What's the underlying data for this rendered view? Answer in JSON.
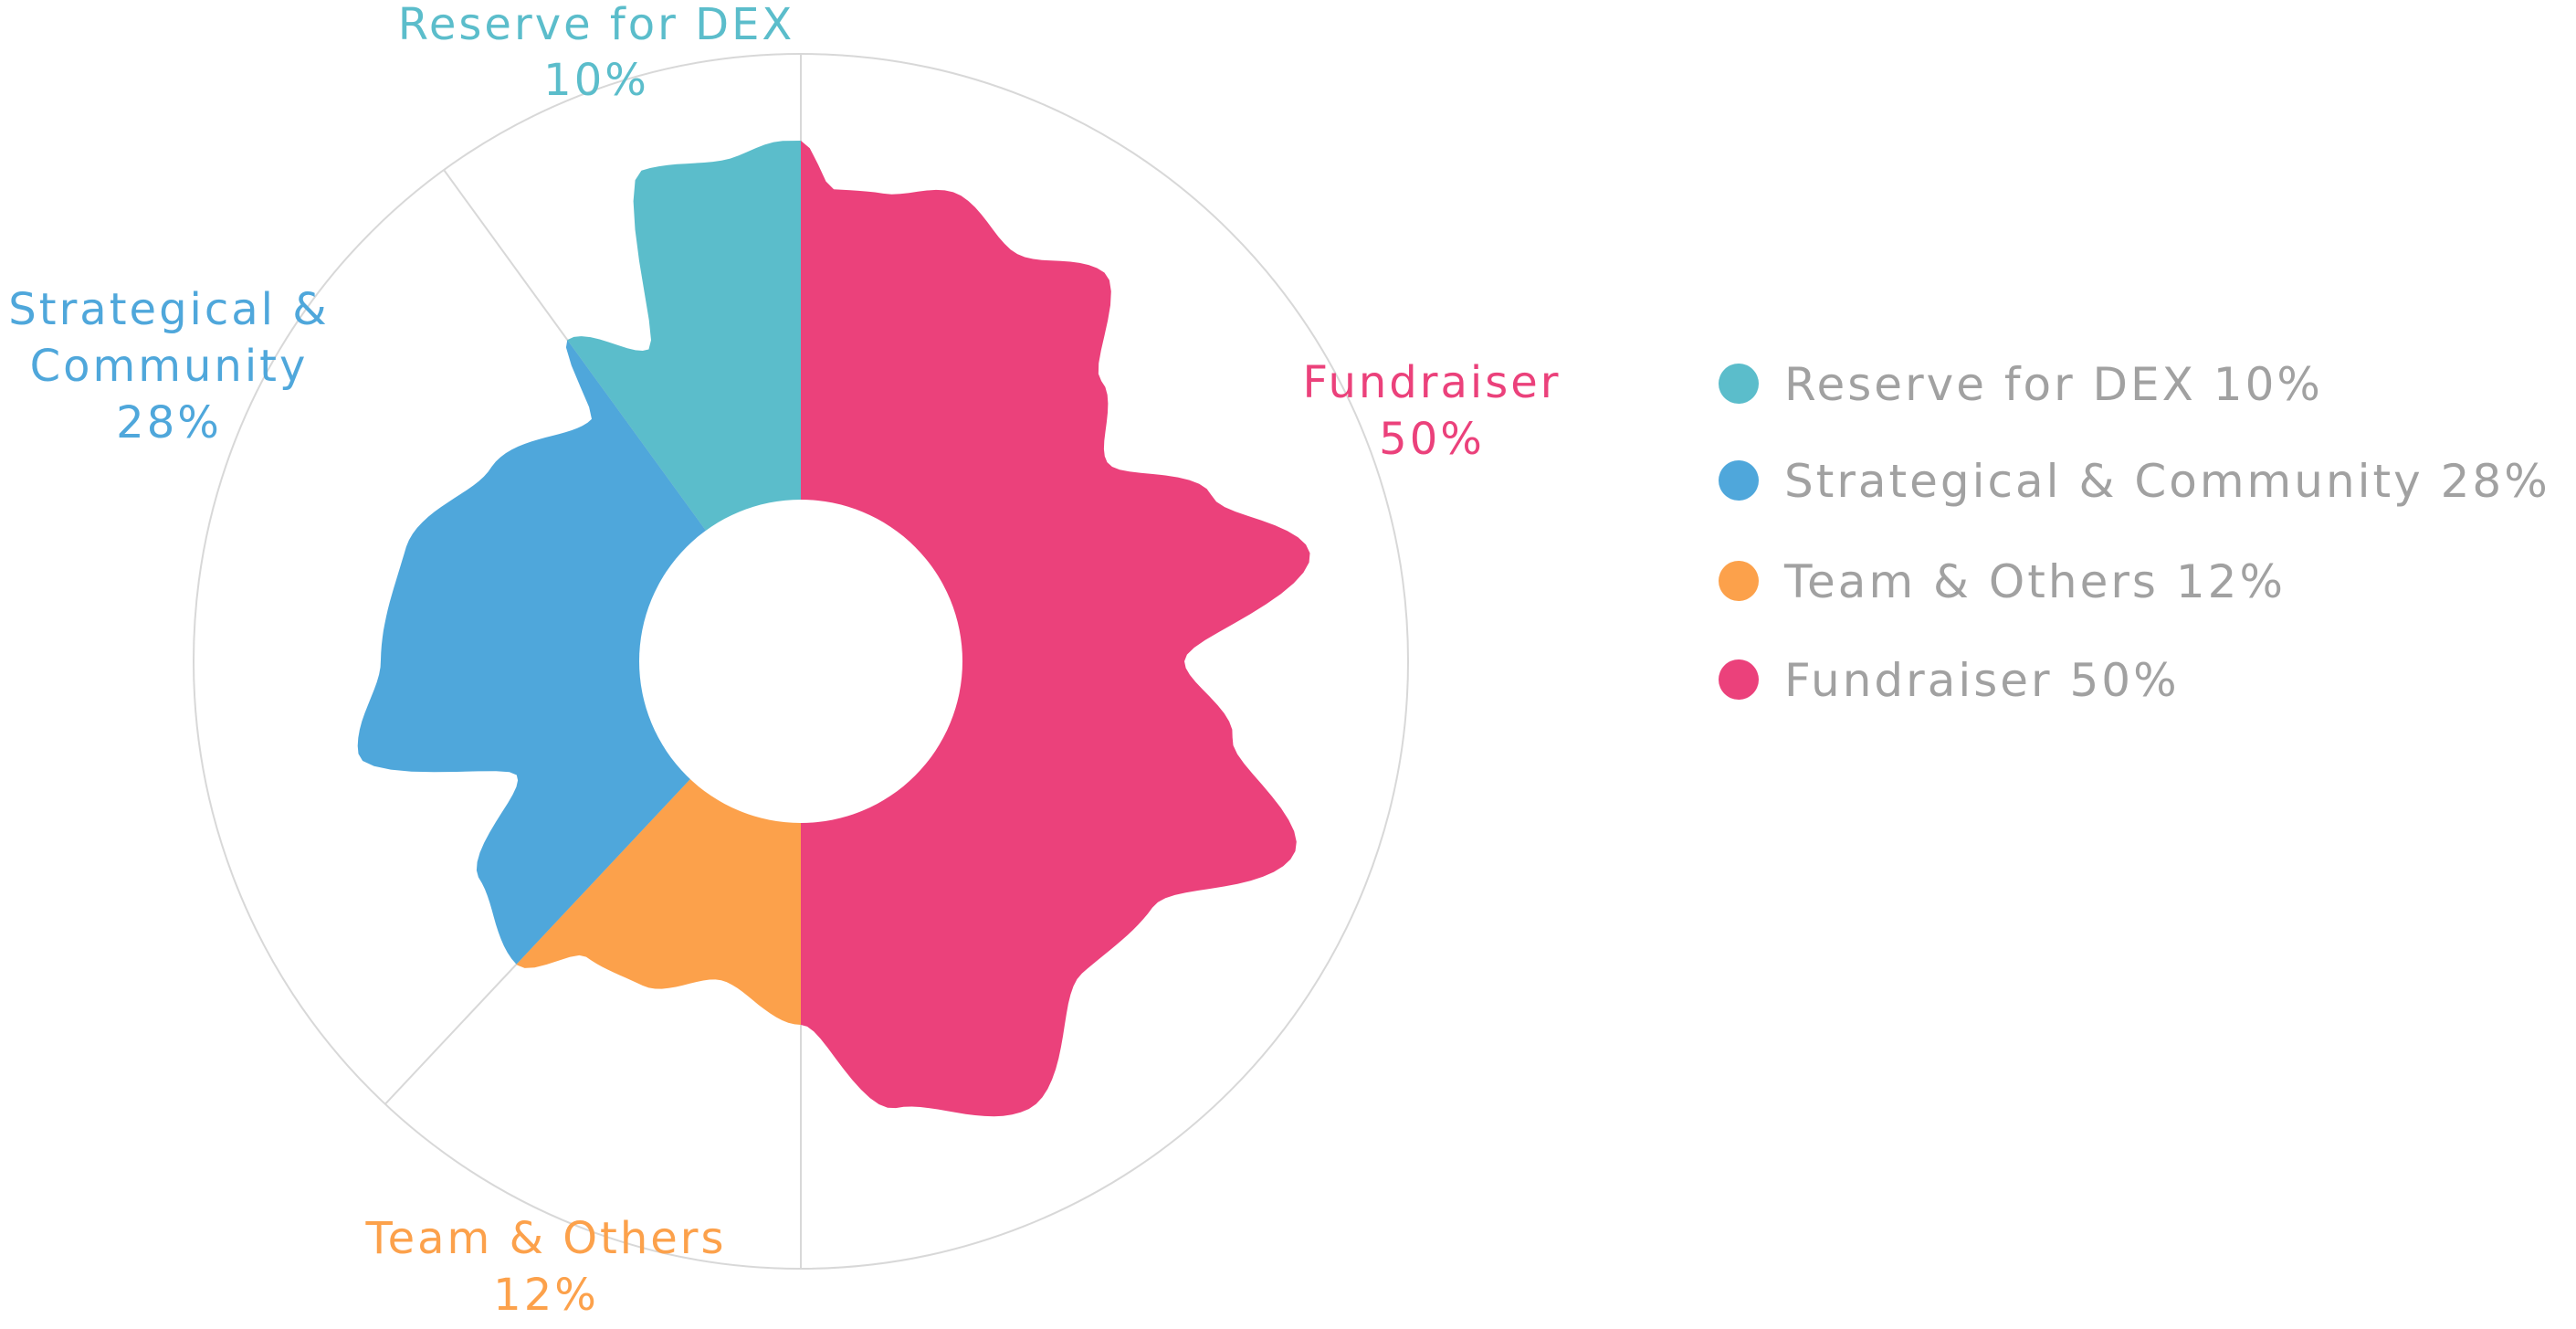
{
  "chart_data": {
    "type": "pie",
    "title": "",
    "slices": [
      {
        "key": "reserve",
        "name": "Reserve for DEX",
        "percent": 10,
        "label_name": "Reserve for DEX",
        "label_value": "10%",
        "legend": "Reserve for DEX 10%",
        "color": "#5bbdcb"
      },
      {
        "key": "strategic",
        "name": "Strategical & Community",
        "percent": 28,
        "label_lines": [
          "Strategical &",
          "Community"
        ],
        "label_value": "28%",
        "legend": "Strategical & Community 28%",
        "color": "#4fa7db"
      },
      {
        "key": "team",
        "name": "Team & Others",
        "percent": 12,
        "label_name": "Team & Others",
        "label_value": "12%",
        "legend": "Team & Others 12%",
        "color": "#fca14b"
      },
      {
        "key": "fund",
        "name": "Fundraiser",
        "percent": 50,
        "label_name": "Fundraiser",
        "label_value": "50%",
        "legend": "Fundraiser 50%",
        "color": "#eb417b"
      }
    ],
    "legend_position": "right",
    "legend_text_color": "#a1a1a1",
    "guide_circle_color": "#d8d8d8",
    "background_color": "#ffffff"
  }
}
